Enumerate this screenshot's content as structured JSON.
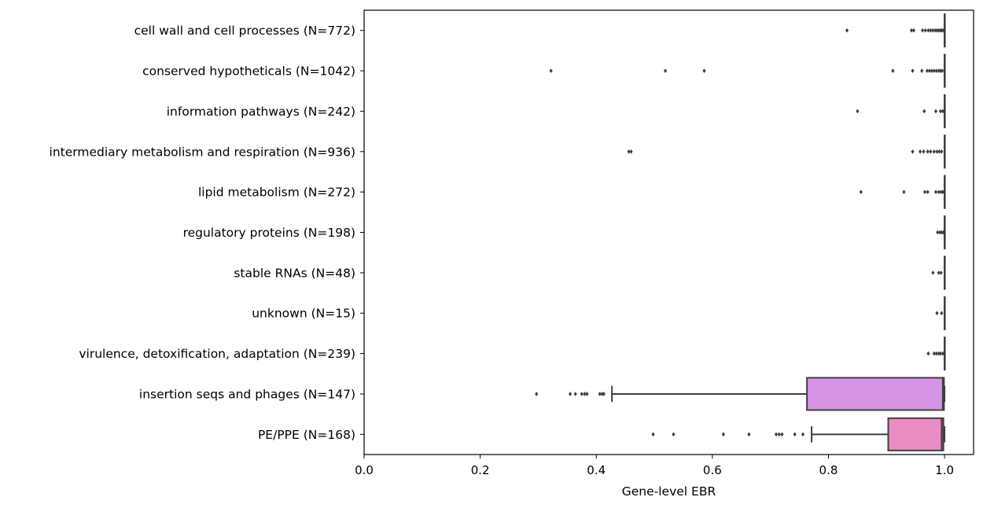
{
  "chart_data": {
    "type": "boxplot",
    "orientation": "horizontal",
    "xlabel": "Gene-level EBR",
    "xlim": [
      0.0,
      1.05
    ],
    "xticks": [
      0.0,
      0.2,
      0.4,
      0.6,
      0.8,
      1.0
    ],
    "xtick_labels": [
      "0.0",
      "0.2",
      "0.4",
      "0.6",
      "0.8",
      "1.0"
    ],
    "grid": false,
    "legend": "none",
    "categories": [
      {
        "label": "cell wall and cell processes (N=772)",
        "q1": 1.0,
        "median": 1.0,
        "q3": 1.0,
        "whisker_low": 1.0,
        "whisker_high": 1.0,
        "outliers": [
          0.832,
          0.943,
          0.947,
          0.962,
          0.967,
          0.972,
          0.976,
          0.98,
          0.984,
          0.987,
          0.99,
          0.993,
          0.995,
          0.997
        ],
        "color": "#c44e52"
      },
      {
        "label": "conserved hypotheticals (N=1042)",
        "q1": 1.0,
        "median": 1.0,
        "q3": 1.0,
        "whisker_low": 1.0,
        "whisker_high": 1.0,
        "outliers": [
          0.322,
          0.519,
          0.586,
          0.911,
          0.945,
          0.961,
          0.97,
          0.974,
          0.978,
          0.982,
          0.986,
          0.99,
          0.993,
          0.996
        ],
        "color": "#dd8452"
      },
      {
        "label": "information pathways (N=242)",
        "q1": 1.0,
        "median": 1.0,
        "q3": 1.0,
        "whisker_low": 1.0,
        "whisker_high": 1.0,
        "outliers": [
          0.85,
          0.965,
          0.985,
          0.993,
          0.997
        ],
        "color": "#ccb974"
      },
      {
        "label": "intermediary metabolism and respiration (N=936)",
        "q1": 1.0,
        "median": 1.0,
        "q3": 1.0,
        "whisker_low": 1.0,
        "whisker_high": 1.0,
        "outliers": [
          0.456,
          0.46,
          0.945,
          0.958,
          0.964,
          0.971,
          0.976,
          0.982,
          0.987,
          0.991,
          0.995
        ],
        "color": "#8fbc3f"
      },
      {
        "label": "lipid metabolism (N=272)",
        "q1": 1.0,
        "median": 1.0,
        "q3": 1.0,
        "whisker_low": 1.0,
        "whisker_high": 1.0,
        "outliers": [
          0.856,
          0.93,
          0.966,
          0.971,
          0.985,
          0.99,
          0.994,
          0.997
        ],
        "color": "#55a868"
      },
      {
        "label": "regulatory proteins (N=198)",
        "q1": 1.0,
        "median": 1.0,
        "q3": 1.0,
        "whisker_low": 1.0,
        "whisker_high": 1.0,
        "outliers": [
          0.988,
          0.992,
          0.995,
          0.998
        ],
        "color": "#4cb391"
      },
      {
        "label": "stable RNAs (N=48)",
        "q1": 1.0,
        "median": 1.0,
        "q3": 1.0,
        "whisker_low": 1.0,
        "whisker_high": 1.0,
        "outliers": [
          0.98,
          0.99,
          0.994
        ],
        "color": "#3fa3b5"
      },
      {
        "label": "unknown (N=15)",
        "q1": 1.0,
        "median": 1.0,
        "q3": 1.0,
        "whisker_low": 1.0,
        "whisker_high": 1.0,
        "outliers": [
          0.987,
          0.995
        ],
        "color": "#4c9ed9"
      },
      {
        "label": "virulence, detoxification, adaptation (N=239)",
        "q1": 1.0,
        "median": 1.0,
        "q3": 1.0,
        "whisker_low": 1.0,
        "whisker_high": 1.0,
        "outliers": [
          0.972,
          0.982,
          0.986,
          0.99,
          0.993,
          0.997
        ],
        "color": "#8c8ce6"
      },
      {
        "label": "insertion seqs and phages (N=147)",
        "q1": 0.763,
        "median": 0.997,
        "q3": 0.999,
        "whisker_low": 0.427,
        "whisker_high": 1.0,
        "outliers": [
          0.297,
          0.355,
          0.364,
          0.375,
          0.38,
          0.384,
          0.406,
          0.41,
          0.413
        ],
        "color": "#d694e6"
      },
      {
        "label": "PE/PPE (N=168)",
        "q1": 0.903,
        "median": 0.995,
        "q3": 0.998,
        "whisker_low": 0.771,
        "whisker_high": 1.0,
        "outliers": [
          0.498,
          0.533,
          0.619,
          0.663,
          0.71,
          0.715,
          0.72,
          0.742,
          0.756
        ],
        "color": "#ea8cc4"
      }
    ]
  }
}
